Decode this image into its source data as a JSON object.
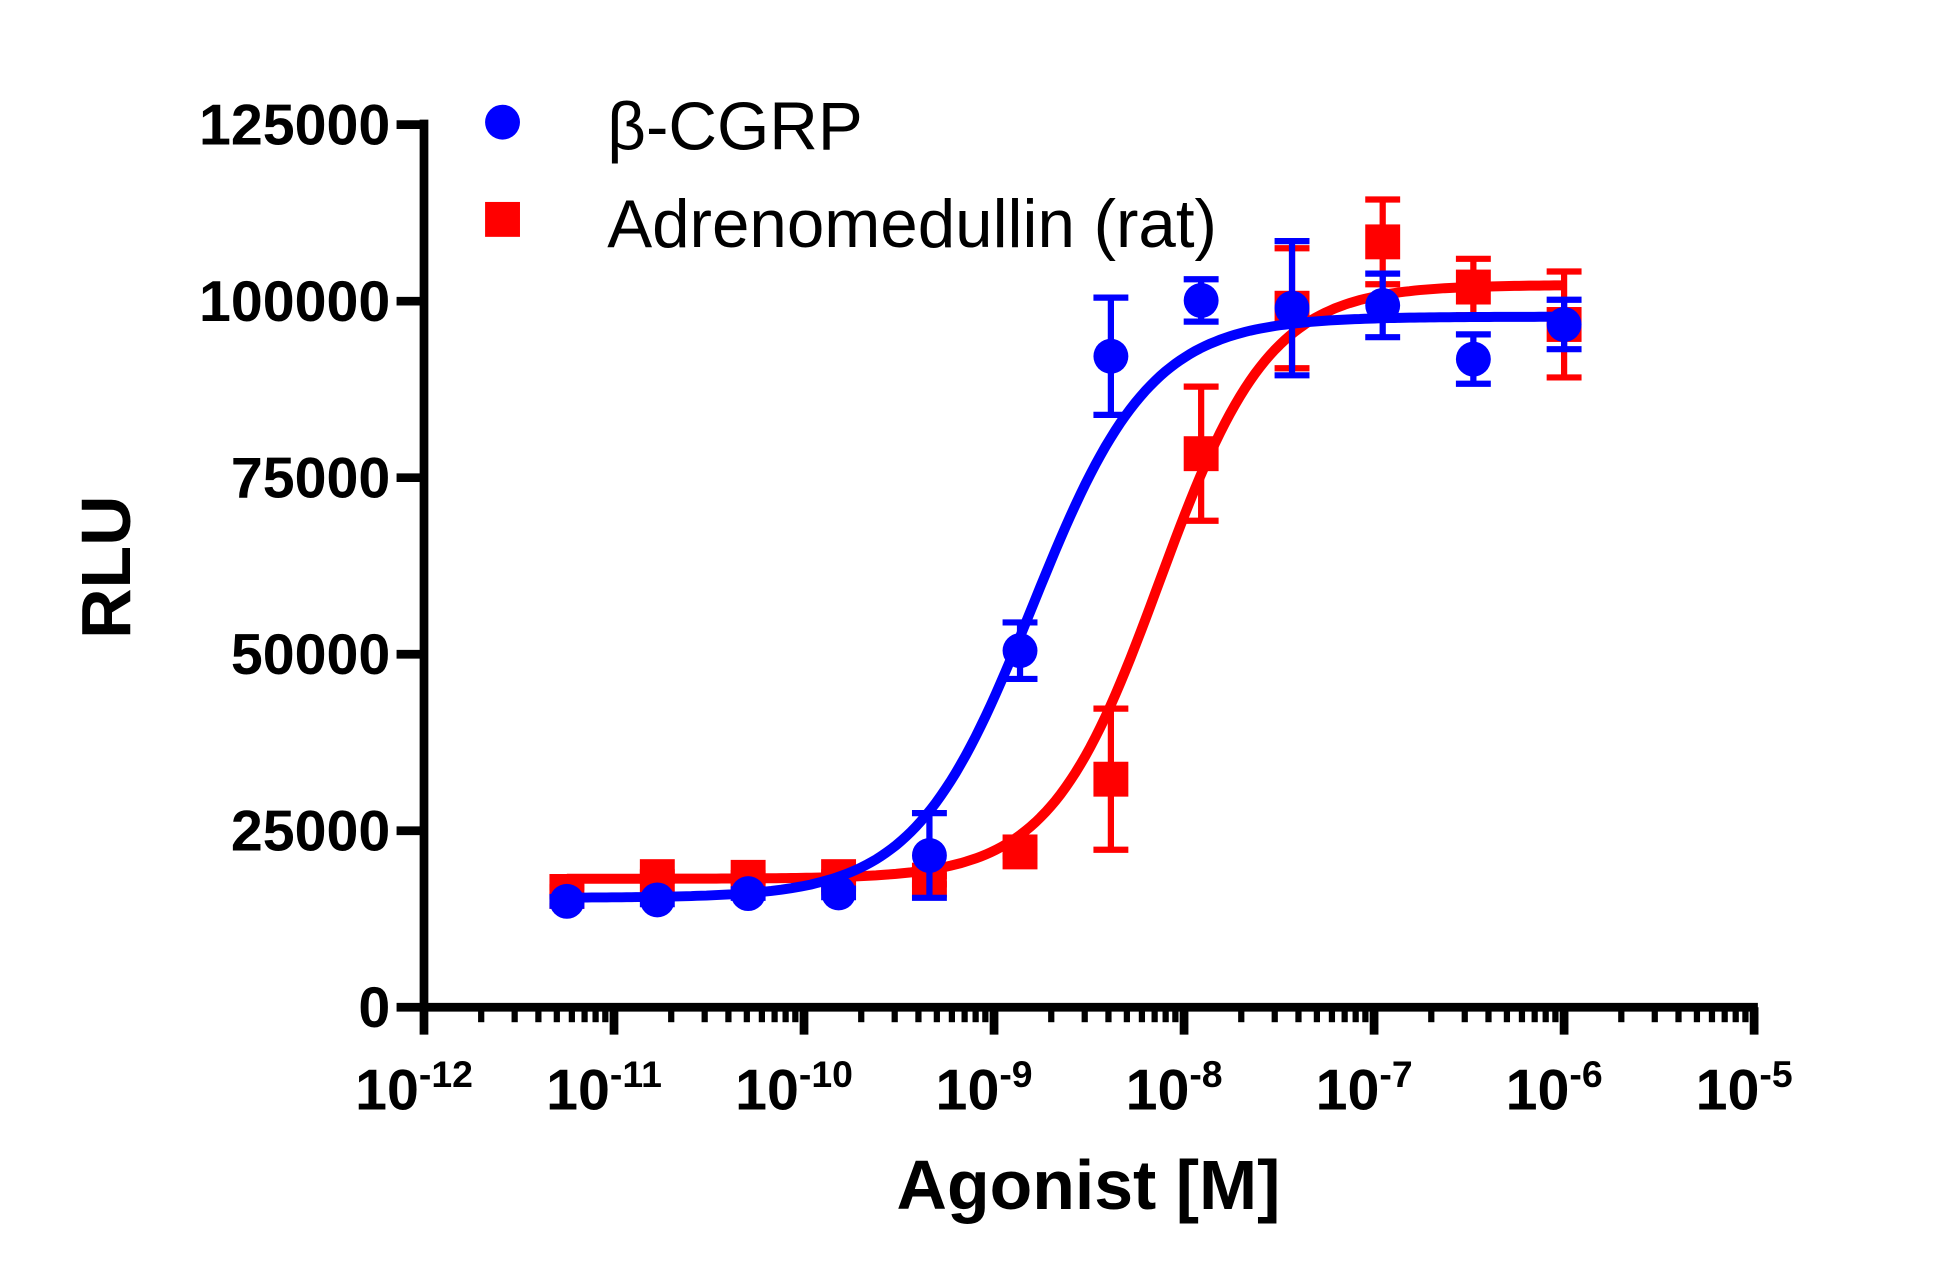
{
  "chart_data": {
    "type": "scatter",
    "title": "",
    "xlabel": "Agonist [M]",
    "ylabel": "RLU",
    "xscale": "log",
    "xlim": [
      1e-12,
      1e-05
    ],
    "ylim": [
      0,
      125000
    ],
    "grid": false,
    "legend_position": "top-left",
    "x_tick_labels": [
      {
        "base": "10",
        "exp": "-12"
      },
      {
        "base": "10",
        "exp": "-11"
      },
      {
        "base": "10",
        "exp": "-10"
      },
      {
        "base": "10",
        "exp": "-9"
      },
      {
        "base": "10",
        "exp": "-8"
      },
      {
        "base": "10",
        "exp": "-7"
      },
      {
        "base": "10",
        "exp": "-6"
      },
      {
        "base": "10",
        "exp": "-5"
      }
    ],
    "y_tick_labels": [
      "0",
      "25000",
      "50000",
      "75000",
      "100000",
      "125000"
    ],
    "x": [
      5.65e-12,
      1.69e-11,
      5.08e-11,
      1.52e-10,
      4.57e-10,
      1.37e-09,
      4.12e-09,
      1.23e-08,
      3.7e-08,
      1.11e-07,
      3.33e-07,
      1e-06
    ],
    "series": [
      {
        "name": "β-CGRP",
        "color": "#0000ff",
        "marker": "circle",
        "values": [
          15000,
          15200,
          16100,
          16200,
          21500,
          50500,
          92200,
          100100,
          99000,
          99400,
          91800,
          96700
        ],
        "errors": [
          600,
          600,
          600,
          600,
          6000,
          4000,
          8300,
          3000,
          9500,
          4500,
          3500,
          3500
        ],
        "fit": {
          "bottom": 15500,
          "top": 97800,
          "log_ec50": -8.8,
          "hill": 1.4
        }
      },
      {
        "name": "Adrenomedullin (rat)",
        "color": "#ff0000",
        "marker": "square",
        "values": [
          16400,
          18500,
          18400,
          18500,
          18000,
          22000,
          32300,
          78400,
          99000,
          108400,
          102000,
          96700
        ],
        "errors": [
          600,
          600,
          600,
          600,
          600,
          600,
          10000,
          9500,
          8500,
          6000,
          4000,
          7500
        ],
        "fit": {
          "bottom": 18200,
          "top": 102300,
          "log_ec50": -8.13,
          "hill": 1.5
        }
      }
    ]
  }
}
